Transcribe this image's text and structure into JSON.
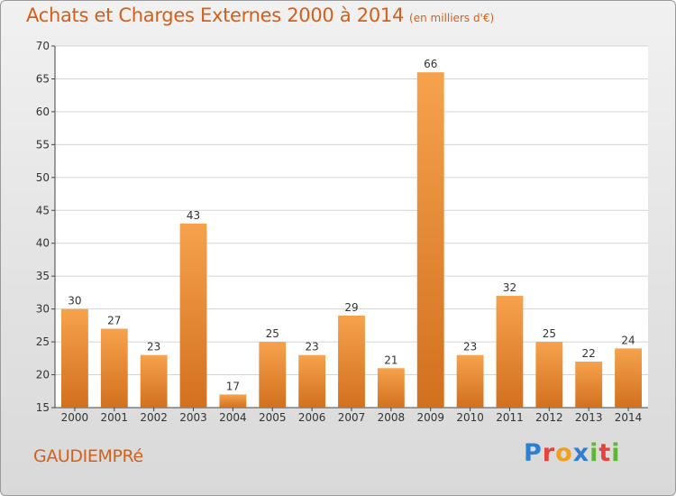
{
  "header": {
    "title": "Achats et Charges Externes 2000 à 2014",
    "subtitle": "(en milliers d'€)"
  },
  "footer": {
    "commune": "GAUDIEMPRé",
    "logo_letters": [
      {
        "ch": "P",
        "color": "#2f7fd0"
      },
      {
        "ch": "r",
        "color": "#e8403a"
      },
      {
        "ch": "o",
        "color": "#f0a020"
      },
      {
        "ch": "x",
        "color": "#2f7fd0"
      },
      {
        "ch": "i",
        "color": "#5fb534"
      },
      {
        "ch": "t",
        "color": "#e8403a"
      },
      {
        "ch": "i",
        "color": "#5fb534"
      }
    ]
  },
  "colors": {
    "bar_top": "#f6a24c",
    "bar_bottom": "#d2701e",
    "accent": "#d2601a"
  },
  "chart_data": {
    "type": "bar",
    "title": "Achats et Charges Externes 2000 à 2014",
    "subtitle": "(en milliers d'€)",
    "categories": [
      "2000",
      "2001",
      "2002",
      "2003",
      "2004",
      "2005",
      "2006",
      "2007",
      "2008",
      "2009",
      "2010",
      "2011",
      "2012",
      "2013",
      "2014"
    ],
    "values": [
      30,
      27,
      23,
      43,
      17,
      25,
      23,
      29,
      21,
      66,
      23,
      32,
      25,
      22,
      24
    ],
    "ylim": [
      15,
      70
    ],
    "yticks": [
      15,
      20,
      25,
      30,
      35,
      40,
      45,
      50,
      55,
      60,
      65,
      70
    ],
    "grid": true,
    "legend": "none"
  }
}
